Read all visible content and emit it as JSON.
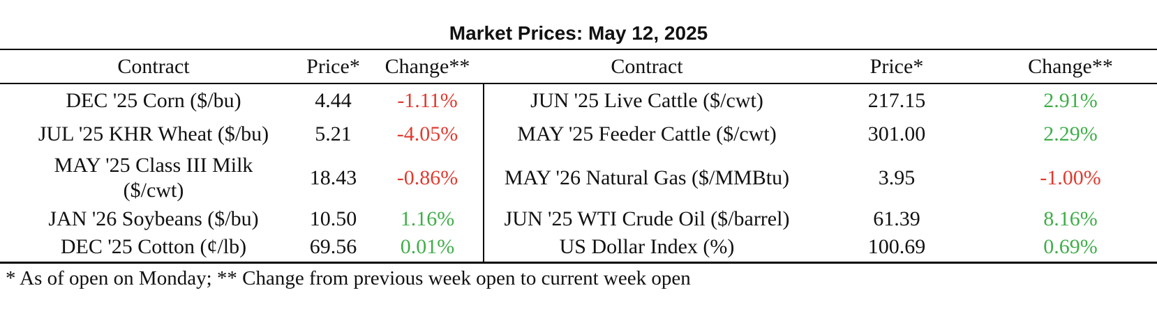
{
  "title": "Market Prices: May 12, 2025",
  "headers": {
    "left": {
      "contract": "Contract",
      "price": "Price*",
      "change": "Change**"
    },
    "right": {
      "contract": "Contract",
      "price": "Price*",
      "change": "Change**"
    }
  },
  "left_rows": [
    {
      "contract": "DEC '25 Corn ($/bu)",
      "price": "4.44",
      "change": "-1.11%"
    },
    {
      "contract": "JUL '25 KHR Wheat ($/bu)",
      "price": "5.21",
      "change": "-4.05%"
    },
    {
      "contract": "MAY '25 Class III Milk ($/cwt)",
      "price": "18.43",
      "change": "-0.86%"
    },
    {
      "contract": "JAN '26 Soybeans ($/bu)",
      "price": "10.50",
      "change": "1.16%"
    },
    {
      "contract": "DEC '25 Cotton (¢/lb)",
      "price": "69.56",
      "change": "0.01%"
    }
  ],
  "right_rows": [
    {
      "contract": "JUN '25 Live Cattle ($/cwt)",
      "price": "217.15",
      "change": "2.91%"
    },
    {
      "contract": "MAY '25 Feeder Cattle ($/cwt)",
      "price": "301.00",
      "change": "2.29%"
    },
    {
      "contract": "MAY '26 Natural Gas ($/MMBtu)",
      "price": "3.95",
      "change": "-1.00%"
    },
    {
      "contract": "JUN '25 WTI Crude Oil ($/barrel)",
      "price": "61.39",
      "change": "8.16%"
    },
    {
      "contract": "US Dollar Index (%)",
      "price": "100.69",
      "change": "0.69%"
    }
  ],
  "colors": {
    "negative": "#e03a2f",
    "positive": "#3fae49"
  },
  "footnote": "* As of open on Monday; ** Change from previous week open to current week open"
}
